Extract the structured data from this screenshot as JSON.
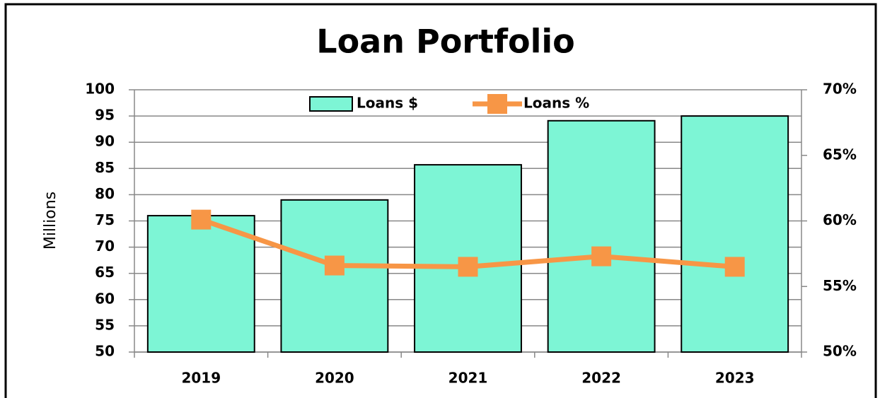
{
  "chart_data": {
    "type": "bar",
    "title": "Loan Portfolio",
    "y_label": "Millions",
    "categories": [
      "2019",
      "2020",
      "2021",
      "2022",
      "2023"
    ],
    "series": [
      {
        "name": "Loans $",
        "type": "bar",
        "color": "#7df5d5",
        "values": [
          76,
          79,
          85.7,
          94.1,
          95
        ]
      },
      {
        "name": "Loans %",
        "type": "line",
        "axis": "y2",
        "color": "#f79646",
        "values": [
          60.1,
          56.6,
          56.5,
          57.3,
          56.5
        ]
      }
    ],
    "ylim": [
      50,
      100
    ],
    "yticks": [
      50,
      55,
      60,
      65,
      70,
      75,
      80,
      85,
      90,
      95,
      100
    ],
    "y2lim": [
      50,
      70
    ],
    "y2ticks": [
      {
        "value": 50,
        "label": "50%"
      },
      {
        "value": 55,
        "label": "55%"
      },
      {
        "value": 60,
        "label": "60%"
      },
      {
        "value": 65,
        "label": "65%"
      },
      {
        "value": 70,
        "label": "70%"
      }
    ],
    "grid": true,
    "legend": "top"
  }
}
